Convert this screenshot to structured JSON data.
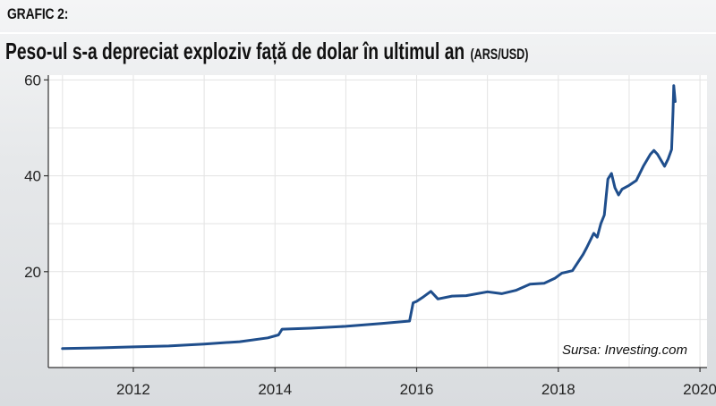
{
  "header": {
    "label": "GRAFIC 2:",
    "title": "Peso-ul s-a depreciat exploziv față de dolar în ultimul an",
    "subtitle": "(ARS/USD)"
  },
  "source": "Sursa: Investing.com",
  "colors": {
    "line": "#1f4e8c",
    "plot_background": "#ffffff",
    "grid": "#e3e3e3",
    "axis": "#333333"
  },
  "chart_data": {
    "type": "line",
    "title": "Peso-ul s-a depreciat exploziv față de dolar în ultimul an",
    "subtitle": "(ARS/USD)",
    "xlabel": "",
    "ylabel": "",
    "xlim": [
      2010.8,
      2020.1
    ],
    "ylim": [
      0,
      61
    ],
    "x_ticks": [
      2012,
      2014,
      2016,
      2018,
      2020
    ],
    "y_ticks": [
      20,
      40,
      60
    ],
    "grid": true,
    "series": [
      {
        "x": [
          2011.0,
          2011.5,
          2012.0,
          2012.5,
          2013.0,
          2013.5,
          2013.9,
          2014.05,
          2014.1,
          2014.5,
          2015.0,
          2015.5,
          2015.9,
          2015.95,
          2016.0,
          2016.1,
          2016.2,
          2016.3,
          2016.5,
          2016.7,
          2017.0,
          2017.2,
          2017.4,
          2017.6,
          2017.8,
          2017.95,
          2018.05,
          2018.2,
          2018.35,
          2018.4,
          2018.5,
          2018.55,
          2018.6,
          2018.65,
          2018.7,
          2018.75,
          2018.8,
          2018.85,
          2018.9,
          2019.0,
          2019.1,
          2019.2,
          2019.3,
          2019.35,
          2019.4,
          2019.5,
          2019.55,
          2019.6,
          2019.62,
          2019.63,
          2019.65
        ],
        "y": [
          3.95,
          4.1,
          4.3,
          4.5,
          4.9,
          5.4,
          6.2,
          6.8,
          8.0,
          8.2,
          8.6,
          9.2,
          9.7,
          13.5,
          13.8,
          14.8,
          15.9,
          14.3,
          14.9,
          15.0,
          15.8,
          15.4,
          16.1,
          17.4,
          17.6,
          18.6,
          19.7,
          20.2,
          23.6,
          25.0,
          28.0,
          27.2,
          30.0,
          31.8,
          39.3,
          40.5,
          37.5,
          36.0,
          37.2,
          38.0,
          39.0,
          42.0,
          44.5,
          45.3,
          44.5,
          42.0,
          43.5,
          45.5,
          53.5,
          58.8,
          55.5
        ]
      }
    ]
  }
}
